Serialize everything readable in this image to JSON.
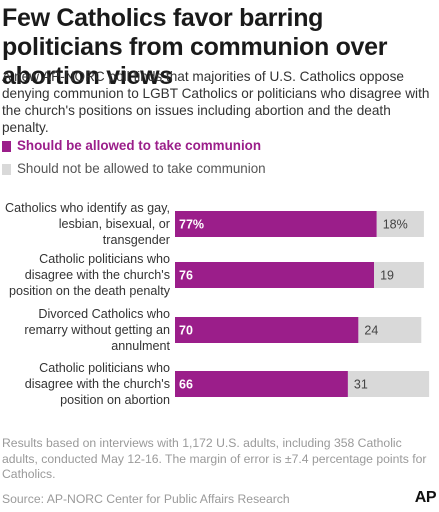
{
  "title": "Few Catholics favor barring politicians from communion over abortion views",
  "subtitle": "A new AP-NORC poll finds that majorities of U.S. Catholics oppose denying communion to LGBT Catholics or politicians who disagree with the church's positions on issues including abortion and the death penalty.",
  "legend": [
    {
      "label": "Should be allowed to take communion",
      "color": "#9b1e8a"
    },
    {
      "label": "Should not be allowed to take communion",
      "color": "#d9d9d9"
    }
  ],
  "chart_data": {
    "type": "bar",
    "orientation": "horizontal",
    "stacked": true,
    "categories": [
      "Catholics who identify as gay, lesbian, bisexual, or transgender",
      "Catholic politicians who disagree with the church's position on the death penalty",
      "Divorced Catholics who remarry without getting an annulment",
      "Catholic politicians who disagree with the church's position on abortion"
    ],
    "category_lines": [
      [
        "Catholics who identify as gay,",
        "lesbian, bisexual, or",
        "transgender"
      ],
      [
        "Catholic politicians who",
        "disagree with the church's",
        "position on the death penalty"
      ],
      [
        "Divorced Catholics who",
        "remarry without getting an",
        "annulment"
      ],
      [
        "Catholic politicians who",
        "disagree with the church's",
        "position on abortion"
      ]
    ],
    "series": [
      {
        "name": "Should be allowed to take communion",
        "values": [
          77,
          76,
          70,
          66
        ],
        "labels": [
          "77%",
          "76",
          "70",
          "66"
        ],
        "color": "#9b1e8a"
      },
      {
        "name": "Should not be allowed to take communion",
        "values": [
          18,
          19,
          24,
          31
        ],
        "labels": [
          "18%",
          "19",
          "24",
          "31"
        ],
        "color": "#d9d9d9"
      }
    ],
    "xlim": [
      0,
      100
    ],
    "grid": false,
    "legend_position": "top-left"
  },
  "footnote": "Results based on interviews with 1,172 U.S. adults, including 358 Catholic adults, conducted May 12-16. The margin of error is ±7.4 percentage points for Catholics.",
  "source": "Source: AP-NORC Center for Public Affairs Research",
  "logo_text": "AP"
}
